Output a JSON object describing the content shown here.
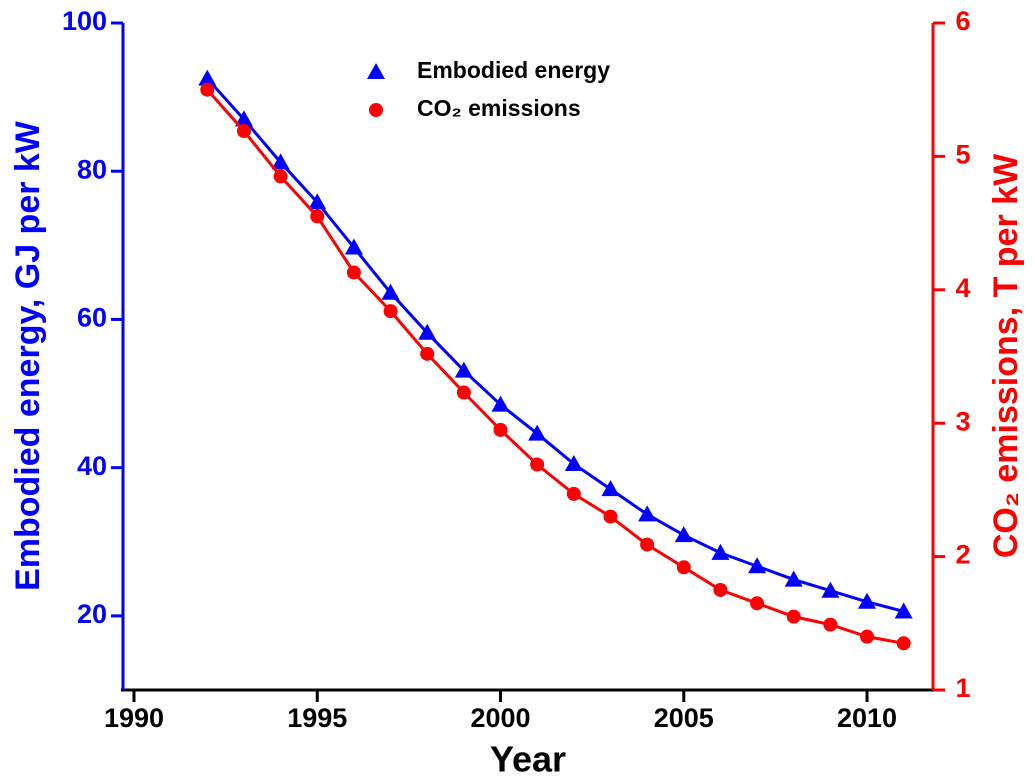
{
  "chart_data": {
    "type": "line",
    "x_label": "Year",
    "y_label": "Embodied energy, GJ per kW",
    "y2_label": "CO₂ emissions, T per kW",
    "x": [
      1992,
      1993,
      1994,
      1995,
      1996,
      1997,
      1998,
      1999,
      2000,
      2001,
      2002,
      2003,
      2004,
      2005,
      2006,
      2007,
      2008,
      2009,
      2010,
      2011
    ],
    "series": [
      {
        "name": "Embodied energy",
        "color": "#0000ff",
        "marker": "triangle",
        "values": [
          92.5,
          87,
          81.2,
          75.8,
          69.7,
          63.6,
          58.2,
          53.1,
          48.5,
          44.6,
          40.5,
          37.1,
          33.7,
          30.9,
          28.5,
          26.7,
          24.9,
          23.4,
          21.9,
          20.6
        ]
      },
      {
        "name": "CO₂ emissions",
        "color": "#ff0000",
        "marker": "circle",
        "axis": "y2",
        "values": [
          5.5,
          5.19,
          4.85,
          4.55,
          4.13,
          3.84,
          3.52,
          3.23,
          2.95,
          2.69,
          2.47,
          2.3,
          2.09,
          1.92,
          1.75,
          1.65,
          1.55,
          1.49,
          1.4,
          1.35
        ]
      }
    ],
    "xlim": [
      1989.7,
      2011.8
    ],
    "xticks": [
      1990,
      1995,
      2000,
      2005,
      2010
    ],
    "ylim": [
      10,
      100
    ],
    "yticks": [
      20,
      40,
      60,
      80,
      100
    ],
    "y2lim": [
      1,
      6
    ],
    "y2ticks": [
      1,
      2,
      3,
      4,
      5,
      6
    ],
    "legend": "top-center"
  }
}
